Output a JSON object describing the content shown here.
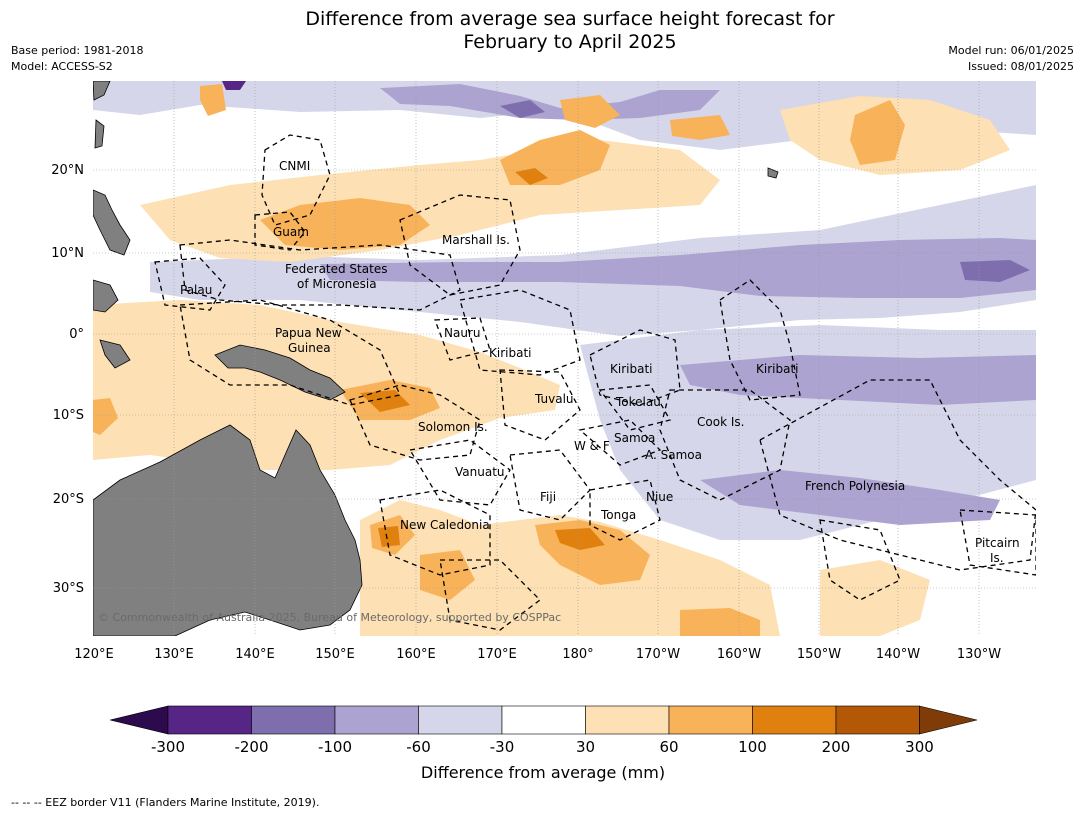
{
  "title": {
    "line1": "Difference from average sea surface height forecast for",
    "line2": "February to April 2025"
  },
  "meta": {
    "base_period": "Base period: 1981-2018",
    "model": "Model: ACCESS-S2",
    "model_run": "Model run: 06/01/2025",
    "issued": "Issued: 08/01/2025"
  },
  "axes": {
    "lon_labels": [
      "120°E",
      "130°E",
      "140°E",
      "150°E",
      "160°E",
      "170°E",
      "180°",
      "170°W",
      "160°W",
      "150°W",
      "140°W",
      "130°W"
    ],
    "lat_labels": [
      "20°N",
      "10°N",
      "0°",
      "10°S",
      "20°S",
      "30°S"
    ]
  },
  "regions": {
    "cnmi": "CNMI",
    "guam": "Guam",
    "marshall": "Marshall Is.",
    "fsm_1": "Federated States",
    "fsm_2": "of Micronesia",
    "palau": "Palau",
    "png_1": "Papua New",
    "png_2": "Guinea",
    "nauru": "Nauru",
    "kiribati_w": "Kiribati",
    "kiribati_c": "Kiribati",
    "kiribati_e": "Kiribati",
    "tuvalu": "Tuvalu",
    "tokelau": "Tokelau",
    "cook": "Cook Is.",
    "solomon": "Solomon Is.",
    "samoa": "Samoa",
    "wf": "W & F",
    "asamoa": "A. Samoa",
    "vanuatu": "Vanuatu",
    "fiji": "Fiji",
    "niue": "Niue",
    "tonga": "Tonga",
    "fp": "French Polynesia",
    "newcal": "New Caledonia",
    "pitcairn_1": "Pitcairn",
    "pitcairn_2": "Is."
  },
  "copyright": "© Commonwealth of Australia 2025, Bureau of Meteorology, supported by COSPPac",
  "colorbar": {
    "ticks": [
      "-300",
      "-200",
      "-100",
      "-60",
      "-30",
      "30",
      "60",
      "100",
      "200",
      "300"
    ],
    "label": "Difference from average (mm)",
    "colors": {
      "below": "#2d0a4e",
      "bins": [
        "#562585",
        "#7e6eae",
        "#aca3d0",
        "#d6d6ea",
        "#ffffff",
        "#fde0b3",
        "#f8b25a",
        "#e0810f",
        "#b35806"
      ],
      "above": "#7f3b08"
    }
  },
  "land_color": "#808080",
  "footer": "--  --  -- EEZ border V11 (Flanders Marine Institute, 2019)."
}
